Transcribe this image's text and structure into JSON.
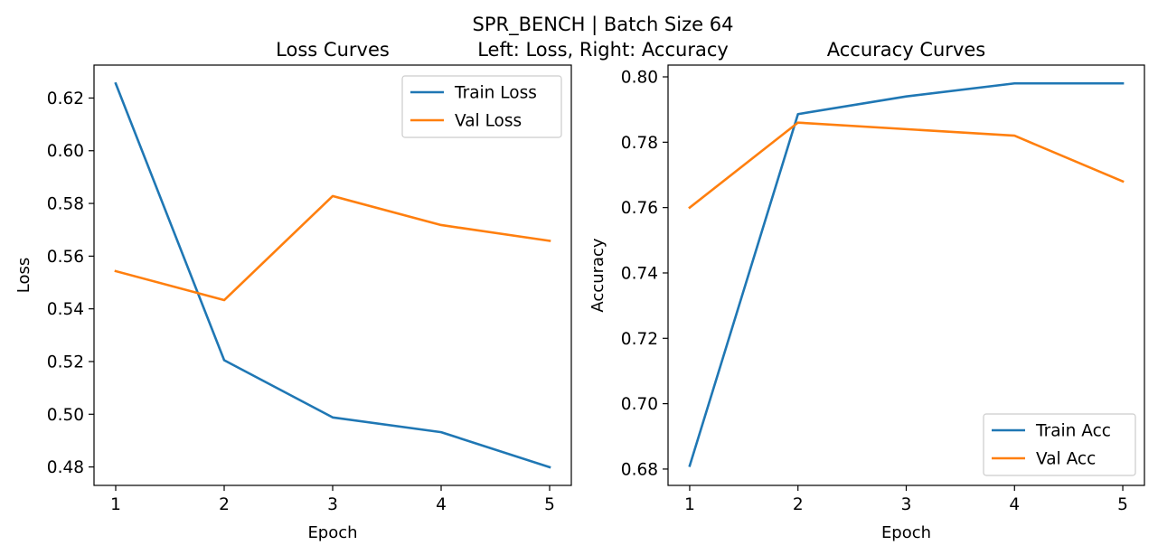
{
  "suptitle_line1": "SPR_BENCH | Batch Size 64",
  "suptitle_line2": "Left: Loss, Right: Accuracy",
  "colors": {
    "train": "#1f77b4",
    "val": "#ff7f0e"
  },
  "chart_data": [
    {
      "type": "line",
      "title": "Loss Curves",
      "xlabel": "Epoch",
      "ylabel": "Loss",
      "x": [
        1,
        2,
        3,
        4,
        5
      ],
      "xlim": [
        0.8,
        5.2
      ],
      "ylim": [
        0.473,
        0.6325
      ],
      "xticks": [
        "1",
        "2",
        "3",
        "4",
        "5"
      ],
      "yticks": [
        "0.48",
        "0.50",
        "0.52",
        "0.54",
        "0.56",
        "0.58",
        "0.60",
        "0.62"
      ],
      "legend_position": "upper right",
      "grid": false,
      "series": [
        {
          "name": "Train Loss",
          "values": [
            0.6255,
            0.5205,
            0.4988,
            0.4932,
            0.4799
          ]
        },
        {
          "name": "Val Loss",
          "values": [
            0.5543,
            0.5433,
            0.5828,
            0.5718,
            0.5658
          ]
        }
      ]
    },
    {
      "type": "line",
      "title": "Accuracy Curves",
      "xlabel": "Epoch",
      "ylabel": "Accuracy",
      "x": [
        1,
        2,
        3,
        4,
        5
      ],
      "xlim": [
        0.8,
        5.2
      ],
      "ylim": [
        0.675,
        0.8036
      ],
      "xticks": [
        "1",
        "2",
        "3",
        "4",
        "5"
      ],
      "yticks": [
        "0.68",
        "0.70",
        "0.72",
        "0.74",
        "0.76",
        "0.78",
        "0.80"
      ],
      "legend_position": "lower right",
      "grid": false,
      "series": [
        {
          "name": "Train Acc",
          "values": [
            0.681,
            0.7886,
            0.794,
            0.798,
            0.798
          ]
        },
        {
          "name": "Val Acc",
          "values": [
            0.76,
            0.786,
            0.784,
            0.782,
            0.768
          ]
        }
      ]
    }
  ]
}
